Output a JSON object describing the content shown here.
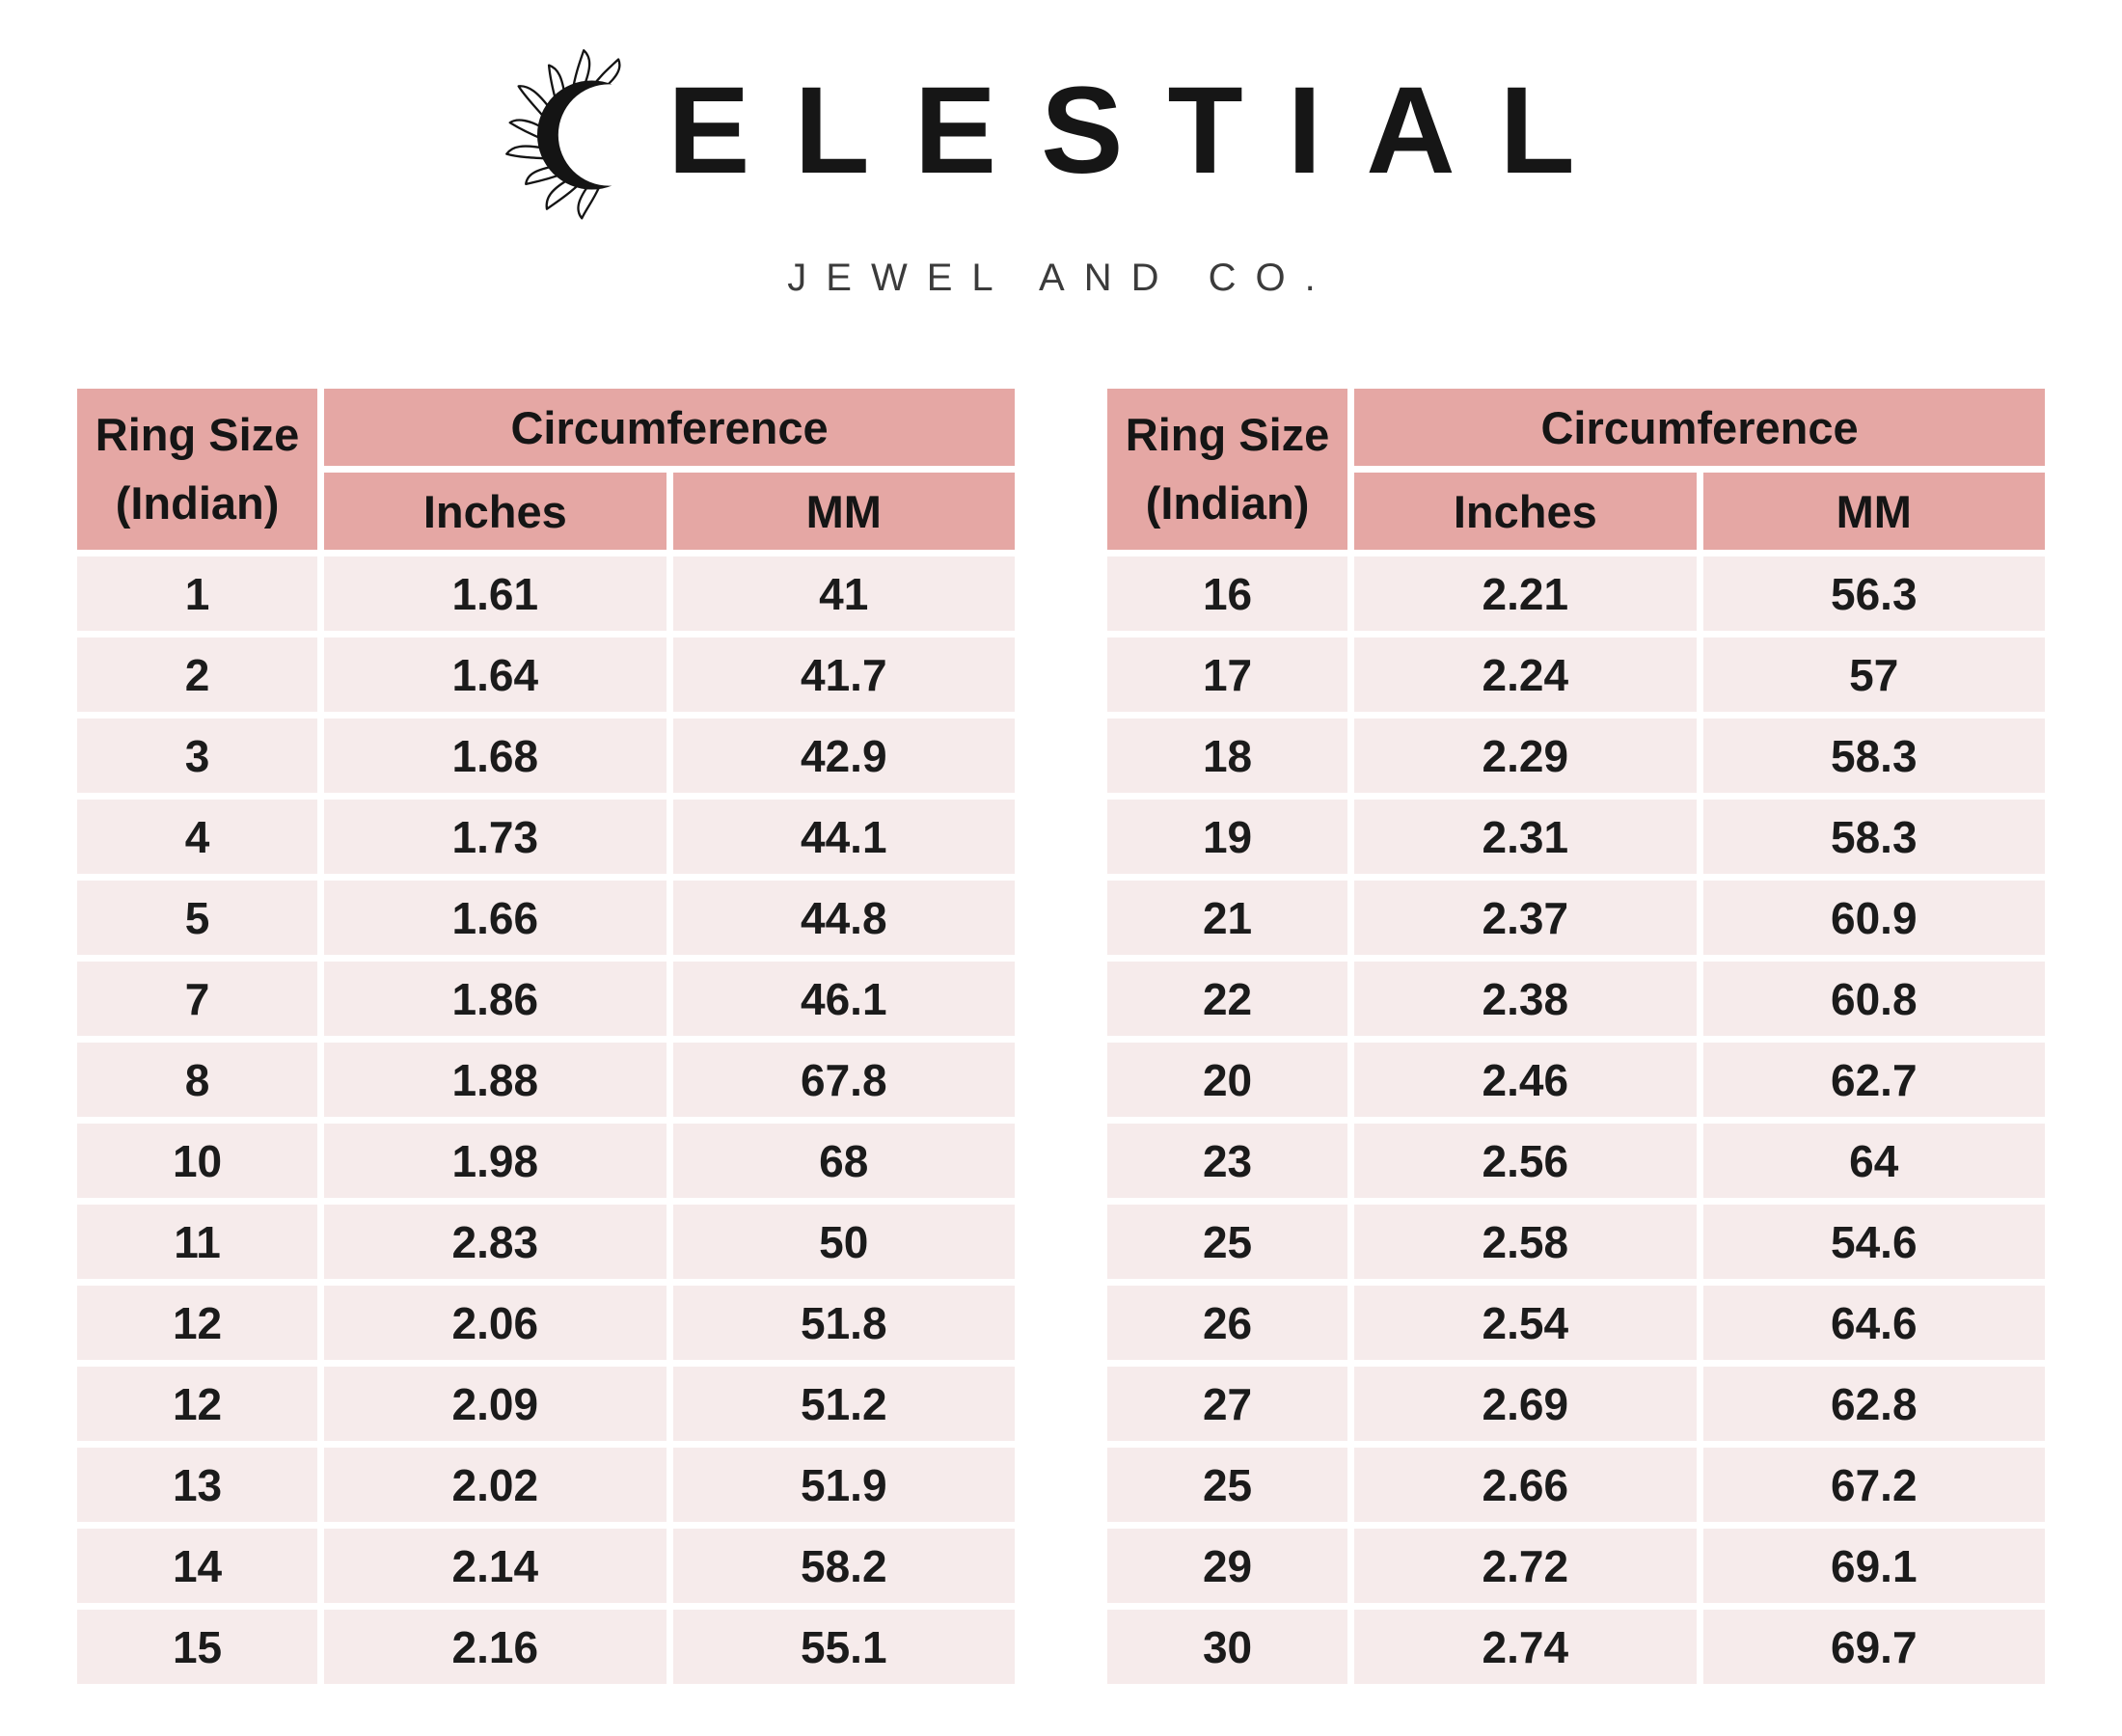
{
  "brand": {
    "wordmark": "ELESTIAL",
    "subtitle": "JEWEL AND CO."
  },
  "table_headers": {
    "ring_size_line1": "Ring Size",
    "ring_size_line2": "(Indian)",
    "circumference": "Circumference",
    "inches": "Inches",
    "mm": "MM"
  },
  "tables": [
    {
      "rows": [
        [
          "1",
          "1.61",
          "41"
        ],
        [
          "2",
          "1.64",
          "41.7"
        ],
        [
          "3",
          "1.68",
          "42.9"
        ],
        [
          "4",
          "1.73",
          "44.1"
        ],
        [
          "5",
          "1.66",
          "44.8"
        ],
        [
          "7",
          "1.86",
          "46.1"
        ],
        [
          "8",
          "1.88",
          "67.8"
        ],
        [
          "10",
          "1.98",
          "68"
        ],
        [
          "11",
          "2.83",
          "50"
        ],
        [
          "12",
          "2.06",
          "51.8"
        ],
        [
          "12",
          "2.09",
          "51.2"
        ],
        [
          "13",
          "2.02",
          "51.9"
        ],
        [
          "14",
          "2.14",
          "58.2"
        ],
        [
          "15",
          "2.16",
          "55.1"
        ]
      ]
    },
    {
      "rows": [
        [
          "16",
          "2.21",
          "56.3"
        ],
        [
          "17",
          "2.24",
          "57"
        ],
        [
          "18",
          "2.29",
          "58.3"
        ],
        [
          "19",
          "2.31",
          "58.3"
        ],
        [
          "21",
          "2.37",
          "60.9"
        ],
        [
          "22",
          "2.38",
          "60.8"
        ],
        [
          "20",
          "2.46",
          "62.7"
        ],
        [
          "23",
          "2.56",
          "64"
        ],
        [
          "25",
          "2.58",
          "54.6"
        ],
        [
          "26",
          "2.54",
          "64.6"
        ],
        [
          "27",
          "2.69",
          "62.8"
        ],
        [
          "25",
          "2.66",
          "67.2"
        ],
        [
          "29",
          "2.72",
          "69.1"
        ],
        [
          "30",
          "2.74",
          "69.7"
        ]
      ]
    }
  ],
  "colors": {
    "header_bg": "#e5a7a4",
    "row_bg": "#f6ebeb",
    "text": "#1b1b1b",
    "subtitle_text": "#3b3b3b",
    "page_bg": "#ffffff"
  }
}
